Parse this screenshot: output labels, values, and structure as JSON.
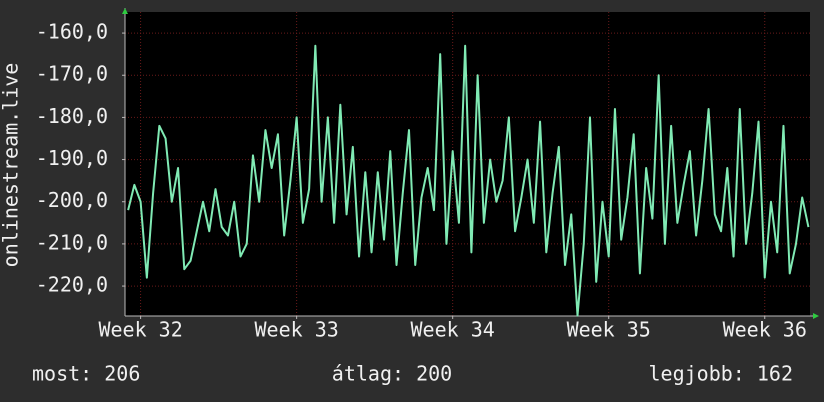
{
  "chart_data": {
    "type": "line",
    "y_label": "onlinestream.live",
    "x": [
      31.92,
      31.96,
      32,
      32.04,
      32.08,
      32.12,
      32.16,
      32.2,
      32.24,
      32.28,
      32.32,
      32.36,
      32.4,
      32.44,
      32.48,
      32.52,
      32.56,
      32.6,
      32.64,
      32.68,
      32.72,
      32.76,
      32.8,
      32.84,
      32.88,
      32.92,
      32.96,
      33,
      33.04,
      33.08,
      33.12,
      33.16,
      33.2,
      33.24,
      33.28,
      33.32,
      33.36,
      33.4,
      33.44,
      33.48,
      33.52,
      33.56,
      33.6,
      33.64,
      33.68,
      33.72,
      33.76,
      33.8,
      33.84,
      33.88,
      33.92,
      33.96,
      34,
      34.04,
      34.08,
      34.12,
      34.16,
      34.2,
      34.24,
      34.28,
      34.32,
      34.36,
      34.4,
      34.44,
      34.48,
      34.52,
      34.56,
      34.6,
      34.64,
      34.68,
      34.72,
      34.76,
      34.8,
      34.84,
      34.88,
      34.92,
      34.96,
      35,
      35.04,
      35.08,
      35.12,
      35.16,
      35.2,
      35.24,
      35.28,
      35.32,
      35.36,
      35.4,
      35.44,
      35.48,
      35.52,
      35.56,
      35.6,
      35.64,
      35.68,
      35.72,
      35.76,
      35.8,
      35.84,
      35.88,
      35.92,
      35.96,
      36,
      36.04,
      36.08,
      36.12,
      36.16,
      36.2,
      36.24,
      36.28
    ],
    "series": [
      {
        "name": "onlinestream.live",
        "color": "#80eab4",
        "values": [
          -202,
          -196,
          -200,
          -218,
          -198,
          -182,
          -185,
          -200,
          -192,
          -216,
          -214,
          -207,
          -200,
          -207,
          -197,
          -206,
          -208,
          -200,
          -213,
          -210,
          -189,
          -200,
          -183,
          -192,
          -184,
          -208,
          -195,
          -180,
          -205,
          -197,
          -163,
          -200,
          -180,
          -205,
          -177,
          -203,
          -187,
          -213,
          -193,
          -212,
          -193,
          -209,
          -188,
          -215,
          -198,
          -183,
          -215,
          -199,
          -192,
          -202,
          -165,
          -210,
          -188,
          -205,
          -163,
          -212,
          -170,
          -205,
          -190,
          -200,
          -195,
          -180,
          -207,
          -199,
          -190,
          -205,
          -181,
          -212,
          -198,
          -187,
          -215,
          -203,
          -227,
          -210,
          -180,
          -219,
          -200,
          -213,
          -178,
          -209,
          -199,
          -184,
          -217,
          -192,
          -204,
          -170,
          -210,
          -182,
          -205,
          -196,
          -188,
          -208,
          -195,
          -178,
          -203,
          -207,
          -192,
          -213,
          -178,
          -210,
          -198,
          -181,
          -218,
          -200,
          -212,
          -182,
          -217,
          -210,
          -199,
          -206
        ]
      }
    ],
    "xlim": [
      31.9,
      36.29
    ],
    "xticks": [
      {
        "value": 32,
        "label": "Week 32"
      },
      {
        "value": 33,
        "label": "Week 33"
      },
      {
        "value": 34,
        "label": "Week 34"
      },
      {
        "value": 35,
        "label": "Week 35"
      },
      {
        "value": 36,
        "label": "Week 36"
      }
    ],
    "ylim": [
      -227.1,
      -155
    ],
    "yticks": [
      {
        "value": -160,
        "label": "-160,0"
      },
      {
        "value": -170,
        "label": "-170,0"
      },
      {
        "value": -180,
        "label": "-180,0"
      },
      {
        "value": -190,
        "label": "-190,0"
      },
      {
        "value": -200,
        "label": "-200,0"
      },
      {
        "value": -210,
        "label": "-210,0"
      },
      {
        "value": -220,
        "label": "-220,0"
      }
    ],
    "grid": true,
    "summary": [
      "most: 206",
      "átlag: 200",
      "legjobb: 162"
    ]
  }
}
